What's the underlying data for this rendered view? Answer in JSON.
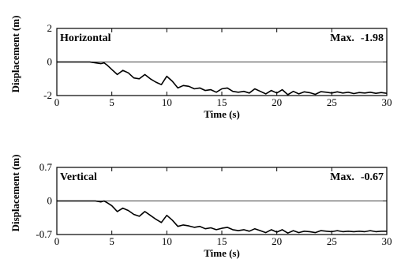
{
  "chart_data": [
    {
      "type": "line",
      "panel_label": "Horizontal",
      "max_label": "Max.",
      "max_value": "-1.98",
      "xlabel": "Time (s)",
      "ylabel": "Displacement (m)",
      "xlim": [
        0,
        30
      ],
      "ylim": [
        -2,
        2
      ],
      "xticks": [
        "0",
        "5",
        "10",
        "15",
        "20",
        "25",
        "30"
      ],
      "yticks": [
        "2",
        "0",
        "-2"
      ],
      "grid": false,
      "x": [
        0,
        3,
        3.5,
        4,
        4.3,
        4.6,
        5,
        5.5,
        6,
        6.5,
        7,
        7.5,
        8,
        8.5,
        9,
        9.5,
        10,
        10.5,
        11,
        11.5,
        12,
        12.5,
        13,
        13.5,
        14,
        14.5,
        15,
        15.5,
        16,
        16.5,
        17,
        17.5,
        18,
        18.5,
        19,
        19.5,
        20,
        20.5,
        21,
        21.5,
        22,
        22.5,
        23,
        23.5,
        24,
        24.5,
        25,
        25.5,
        26,
        26.5,
        27,
        27.5,
        28,
        28.5,
        29,
        29.5,
        30
      ],
      "series": [
        {
          "values": [
            0,
            0,
            -0.05,
            -0.1,
            -0.05,
            -0.2,
            -0.45,
            -0.75,
            -0.5,
            -0.65,
            -0.95,
            -1.0,
            -0.75,
            -1.0,
            -1.2,
            -1.35,
            -0.85,
            -1.15,
            -1.55,
            -1.4,
            -1.45,
            -1.6,
            -1.55,
            -1.7,
            -1.65,
            -1.8,
            -1.6,
            -1.55,
            -1.75,
            -1.8,
            -1.75,
            -1.85,
            -1.6,
            -1.75,
            -1.9,
            -1.7,
            -1.85,
            -1.65,
            -1.95,
            -1.75,
            -1.9,
            -1.78,
            -1.83,
            -1.93,
            -1.77,
            -1.8,
            -1.85,
            -1.78,
            -1.85,
            -1.8,
            -1.88,
            -1.82,
            -1.85,
            -1.8,
            -1.87,
            -1.82,
            -1.87
          ]
        }
      ]
    },
    {
      "type": "line",
      "panel_label": "Vertical",
      "max_label": "Max.",
      "max_value": "-0.67",
      "xlabel": "Time (s)",
      "ylabel": "Displacement (m)",
      "xlim": [
        0,
        30
      ],
      "ylim": [
        -0.7,
        0.7
      ],
      "xticks": [
        "0",
        "5",
        "10",
        "15",
        "20",
        "25",
        "30"
      ],
      "yticks": [
        "0.7",
        "0",
        "-0.7"
      ],
      "grid": false,
      "x": [
        0,
        3,
        3.5,
        4,
        4.3,
        4.6,
        5,
        5.5,
        6,
        6.5,
        7,
        7.5,
        8,
        8.5,
        9,
        9.5,
        10,
        10.5,
        11,
        11.5,
        12,
        12.5,
        13,
        13.5,
        14,
        14.5,
        15,
        15.5,
        16,
        16.5,
        17,
        17.5,
        18,
        18.5,
        19,
        19.5,
        20,
        20.5,
        21,
        21.5,
        22,
        22.5,
        23,
        23.5,
        24,
        24.5,
        25,
        25.5,
        26,
        26.5,
        27,
        27.5,
        28,
        28.5,
        29,
        29.5,
        30
      ],
      "series": [
        {
          "values": [
            0,
            0,
            0,
            -0.02,
            0,
            -0.04,
            -0.1,
            -0.22,
            -0.15,
            -0.2,
            -0.28,
            -0.32,
            -0.22,
            -0.3,
            -0.38,
            -0.45,
            -0.3,
            -0.4,
            -0.53,
            -0.5,
            -0.52,
            -0.55,
            -0.53,
            -0.58,
            -0.56,
            -0.6,
            -0.57,
            -0.55,
            -0.6,
            -0.62,
            -0.6,
            -0.63,
            -0.58,
            -0.62,
            -0.66,
            -0.6,
            -0.65,
            -0.6,
            -0.67,
            -0.62,
            -0.66,
            -0.63,
            -0.64,
            -0.66,
            -0.62,
            -0.63,
            -0.64,
            -0.62,
            -0.64,
            -0.63,
            -0.64,
            -0.63,
            -0.64,
            -0.62,
            -0.64,
            -0.63,
            -0.63
          ]
        }
      ]
    }
  ]
}
